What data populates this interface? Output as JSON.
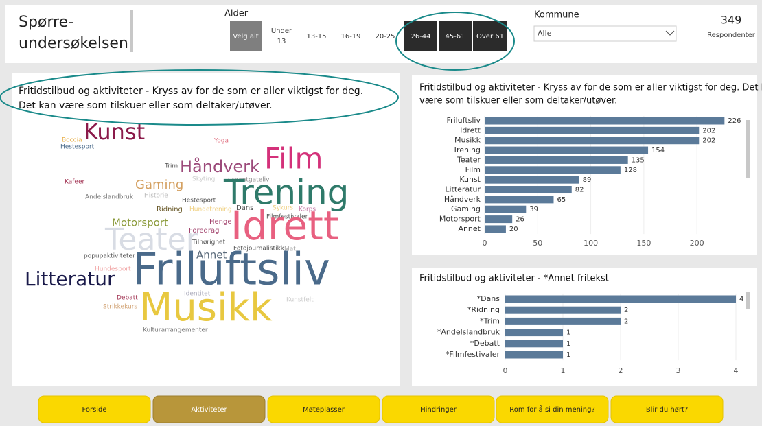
{
  "header": {
    "title_lines": [
      "Spørre-",
      "undersøkelsen"
    ]
  },
  "age_filter": {
    "label": "Alder",
    "options": [
      "Velg alt",
      "Under 13",
      "13-15",
      "16-19",
      "20-25",
      "26-44",
      "45-61",
      "Over 61"
    ],
    "selected": [
      5,
      6,
      7
    ]
  },
  "kommune": {
    "label": "Kommune",
    "value": "Alle"
  },
  "respondents": {
    "count": 349,
    "label": "Respondenter"
  },
  "word_cloud": {
    "title_lines": [
      "Fritidstilbud og aktiviteter - Kryss av for de som er aller viktigst for deg.",
      "Det kan være som tilskuer eller som deltaker/utøver."
    ],
    "words": [
      "Kunst",
      "Boccia",
      "Hestesport",
      "Yoga",
      "Film",
      "Håndverk",
      "Trim",
      "Skyting",
      "urbantgateliv",
      "Kafeer",
      "Gaming",
      "Trening",
      "Andelslandbruk",
      "Historie",
      "Hestesport",
      "Ridning",
      "Hundetrening",
      "Dans",
      "Sykurs",
      "Korps",
      "Filmfestivaler",
      "Motorsport",
      "Henge",
      "Foredrag",
      "Idrett",
      "Teater",
      "Tilhørighet",
      "Fotojournalistikk",
      "Mat",
      "popupaktiviteter",
      "Annet",
      "Hundesport",
      "Friluftsliv",
      "Litteratur",
      "Identitet",
      "Kunstfelt",
      "Debatt",
      "Strikkekurs",
      "Musikk",
      "Kulturarrangementer"
    ]
  },
  "chart_data": [
    {
      "type": "bar",
      "orientation": "horizontal",
      "title_lines": [
        "Fritidstilbud og aktiviteter - Kryss av for de som er aller viktigst for deg. Det kan",
        "være som tilskuer eller som deltaker/utøver."
      ],
      "categories": [
        "Friluftsliv",
        "Idrett",
        "Musikk",
        "Trening",
        "Teater",
        "Film",
        "Kunst",
        "Litteratur",
        "Håndverk",
        "Gaming",
        "Motorsport",
        "Annet"
      ],
      "values": [
        226,
        202,
        202,
        154,
        135,
        128,
        89,
        82,
        65,
        39,
        26,
        20
      ],
      "xlim": [
        0,
        240
      ],
      "xticks": [
        0,
        50,
        100,
        150,
        200
      ],
      "color": "#5b7a99"
    },
    {
      "type": "bar",
      "orientation": "horizontal",
      "title_lines": [
        "Fritidstilbud og aktiviteter - *Annet fritekst"
      ],
      "categories": [
        "*Dans",
        "*Ridning",
        "*Trim",
        "*Andelslandbruk",
        "*Debatt",
        "*Filmfestivaler"
      ],
      "values": [
        4,
        2,
        2,
        1,
        1,
        1
      ],
      "xlim": [
        0,
        4
      ],
      "xticks": [
        0,
        1,
        2,
        3,
        4
      ],
      "color": "#5b7a99"
    }
  ],
  "navigation": {
    "tabs": [
      "Forside",
      "Aktiviteter",
      "Møteplasser",
      "Hindringer",
      "Rom for å si din mening?",
      "Blir du hørt?"
    ],
    "active": 1
  }
}
